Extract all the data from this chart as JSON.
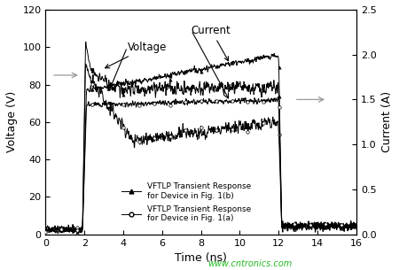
{
  "xlabel": "Time (ns)",
  "ylabel_left": "Voltage (V)",
  "ylabel_right": "Current (A)",
  "xlim": [
    0,
    16
  ],
  "ylim_left": [
    0,
    120
  ],
  "ylim_right": [
    0.0,
    2.5
  ],
  "xticks": [
    0,
    2,
    4,
    6,
    8,
    10,
    12,
    14,
    16
  ],
  "yticks_left": [
    0,
    20,
    40,
    60,
    80,
    100,
    120
  ],
  "yticks_right": [
    0.0,
    0.5,
    1.0,
    1.5,
    2.0,
    2.5
  ],
  "legend_1b": "VFTLP Transient Response\nfor Device in Fig. 1(b)",
  "legend_1a": "VFTLP Transient Response\nfor Device in Fig. 1(a)",
  "voltage_annotation": "Voltage",
  "current_annotation": "Current",
  "watermark": "www.cntronics.com",
  "watermark_color": "#22bb22",
  "background_color": "#ffffff",
  "line_color": "#000000",
  "arrow_color": "#999999"
}
